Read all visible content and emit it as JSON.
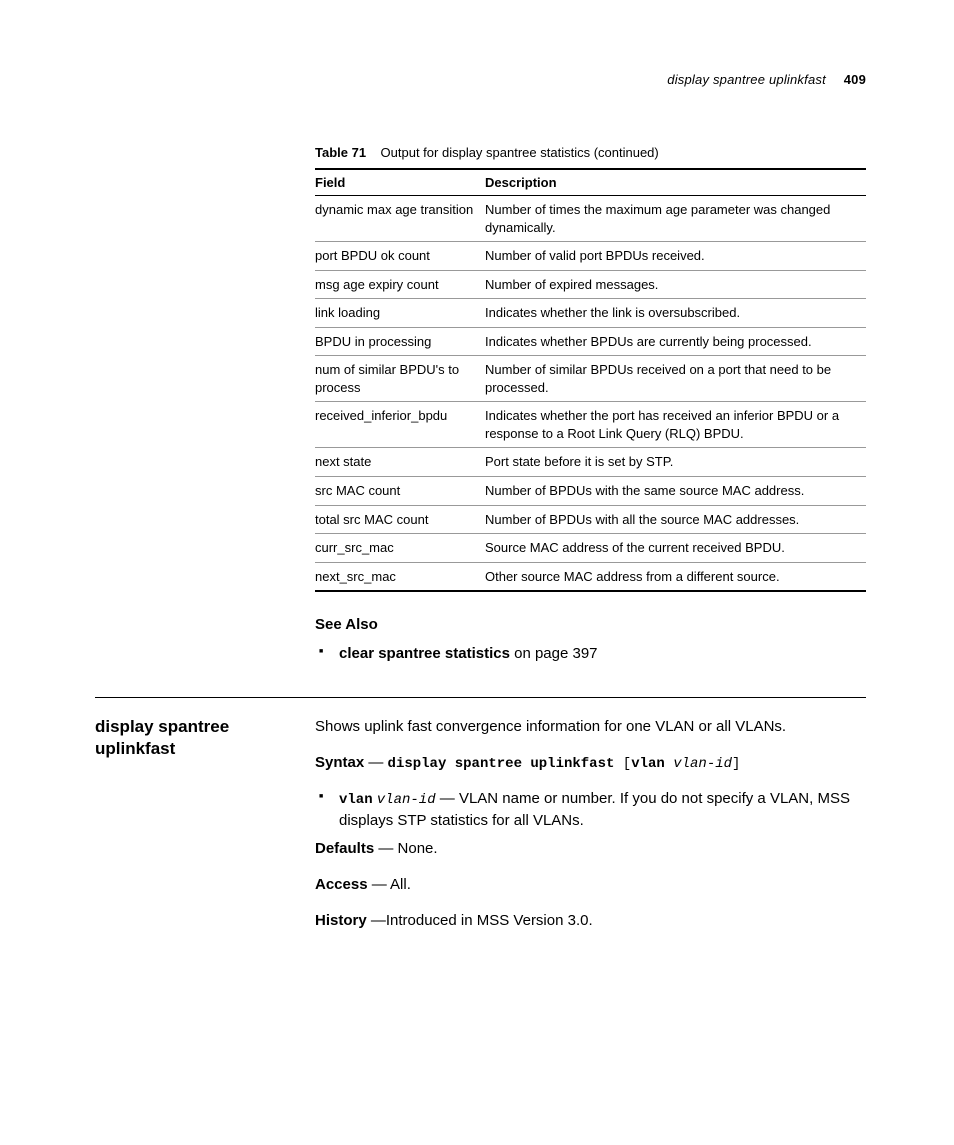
{
  "header": {
    "running_title": "display spantree uplinkfast",
    "page_number": "409"
  },
  "table": {
    "caption_label": "Table 71",
    "caption_text": "Output for display spantree statistics (continued)",
    "col_field": "Field",
    "col_description": "Description",
    "rows": [
      {
        "field": "dynamic max age transition",
        "desc": "Number of times the maximum age parameter was changed dynamically."
      },
      {
        "field": "port BPDU ok count",
        "desc": "Number of valid port BPDUs received."
      },
      {
        "field": "msg age expiry count",
        "desc": "Number of expired messages."
      },
      {
        "field": "link loading",
        "desc": "Indicates whether the link is oversubscribed."
      },
      {
        "field": "BPDU in processing",
        "desc": "Indicates whether BPDUs are currently being processed."
      },
      {
        "field": "num of similar BPDU's to process",
        "desc": "Number of similar BPDUs received on a port that need to be processed."
      },
      {
        "field": "received_inferior_bpdu",
        "desc": "Indicates whether the port has received an inferior BPDU or a response to a Root Link Query (RLQ) BPDU."
      },
      {
        "field": "next state",
        "desc": "Port state before it is set by STP."
      },
      {
        "field": "src MAC count",
        "desc": "Number of BPDUs with the same source MAC address."
      },
      {
        "field": "total src MAC count",
        "desc": "Number of BPDUs with all the source MAC addresses."
      },
      {
        "field": "curr_src_mac",
        "desc": "Source MAC address of the current received BPDU."
      },
      {
        "field": "next_src_mac",
        "desc": "Other source MAC address from a different source."
      }
    ]
  },
  "see_also": {
    "heading": "See Also",
    "link_text": "clear spantree statistics",
    "link_suffix": " on page 397"
  },
  "section": {
    "title": "display spantree uplinkfast",
    "intro": "Shows uplink fast convergence information for one VLAN or all VLANs.",
    "syntax_label": "Syntax",
    "syntax_dash": " — ",
    "syntax_cmd": "display spantree uplinkfast",
    "syntax_bracket_open": " [",
    "syntax_opt_kw": "vlan",
    "syntax_space": " ",
    "syntax_opt_arg": "vlan-id",
    "syntax_bracket_close": "]",
    "param_kw": "vlan",
    "param_arg": "vlan-id",
    "param_dash": " — ",
    "param_desc": "VLAN name or number. If you do not specify a VLAN, MSS displays STP statistics for all VLANs.",
    "defaults_label": "Defaults",
    "defaults_value": " — None.",
    "access_label": "Access",
    "access_value": " — All.",
    "history_label": "History",
    "history_value": " —Introduced in MSS Version 3.0."
  }
}
